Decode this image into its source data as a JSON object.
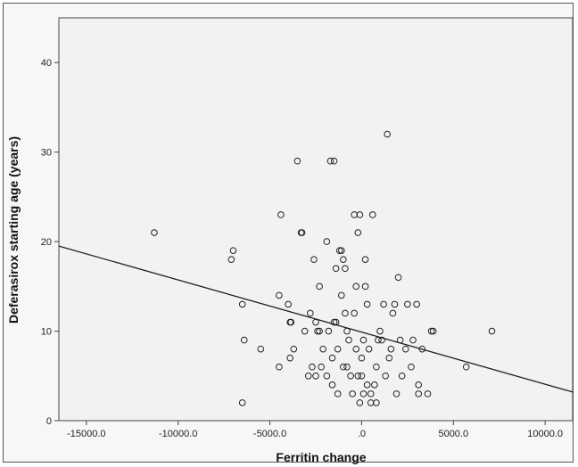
{
  "chart_data": {
    "type": "scatter",
    "title": "",
    "xlabel": "Ferritin change",
    "ylabel": "Deferasirox starting age (years)",
    "xlim": [
      -16500,
      11500
    ],
    "ylim": [
      0,
      45
    ],
    "xticks": [
      -15000,
      -10000,
      -5000,
      0,
      5000,
      10000
    ],
    "xtick_labels": [
      "-15000.0",
      "-10000.0",
      "-5000.0",
      ".0",
      "5000.0",
      "10000.0"
    ],
    "yticks": [
      0,
      10,
      20,
      30,
      40
    ],
    "ytick_labels": [
      "0",
      "10",
      "20",
      "30",
      "40"
    ],
    "grid": false,
    "marker": "open-circle",
    "fit_line": {
      "type": "linear",
      "x": [
        -16500,
        11500
      ],
      "y": [
        19.5,
        3.2
      ]
    },
    "points": [
      [
        -11300,
        21
      ],
      [
        -7000,
        19
      ],
      [
        -7100,
        18
      ],
      [
        -6500,
        13
      ],
      [
        -6400,
        9
      ],
      [
        -6500,
        2
      ],
      [
        -5500,
        8
      ],
      [
        -4400,
        23
      ],
      [
        -4500,
        14
      ],
      [
        -4500,
        6
      ],
      [
        -4000,
        13
      ],
      [
        -3900,
        11
      ],
      [
        -3850,
        11
      ],
      [
        -3900,
        7
      ],
      [
        -3700,
        8
      ],
      [
        -3500,
        29
      ],
      [
        -3300,
        21
      ],
      [
        -3250,
        21
      ],
      [
        -3100,
        10
      ],
      [
        -2900,
        5
      ],
      [
        -2800,
        12
      ],
      [
        -2700,
        6
      ],
      [
        -2600,
        18
      ],
      [
        -2500,
        11
      ],
      [
        -2500,
        5
      ],
      [
        -2400,
        10
      ],
      [
        -2300,
        10
      ],
      [
        -2300,
        15
      ],
      [
        -2200,
        6
      ],
      [
        -2100,
        8
      ],
      [
        -1900,
        20
      ],
      [
        -1900,
        5
      ],
      [
        -1800,
        10
      ],
      [
        -1700,
        29
      ],
      [
        -1600,
        4
      ],
      [
        -1500,
        29
      ],
      [
        -1600,
        7
      ],
      [
        -1500,
        11
      ],
      [
        -1400,
        17
      ],
      [
        -1400,
        11
      ],
      [
        -1300,
        8
      ],
      [
        -1300,
        3
      ],
      [
        -1200,
        19
      ],
      [
        -1100,
        19
      ],
      [
        -1100,
        14
      ],
      [
        -1000,
        18
      ],
      [
        -1000,
        6
      ],
      [
        -900,
        17
      ],
      [
        -900,
        12
      ],
      [
        -800,
        10
      ],
      [
        -800,
        6
      ],
      [
        -700,
        9
      ],
      [
        -600,
        5
      ],
      [
        -500,
        3
      ],
      [
        -400,
        23
      ],
      [
        -400,
        12
      ],
      [
        -300,
        15
      ],
      [
        -300,
        8
      ],
      [
        -200,
        21
      ],
      [
        -200,
        5
      ],
      [
        -100,
        23
      ],
      [
        -100,
        2
      ],
      [
        0,
        7
      ],
      [
        0,
        5
      ],
      [
        100,
        9
      ],
      [
        100,
        3
      ],
      [
        200,
        18
      ],
      [
        200,
        15
      ],
      [
        300,
        4
      ],
      [
        300,
        13
      ],
      [
        400,
        8
      ],
      [
        500,
        3
      ],
      [
        500,
        2
      ],
      [
        600,
        23
      ],
      [
        700,
        4
      ],
      [
        800,
        2
      ],
      [
        800,
        6
      ],
      [
        900,
        9
      ],
      [
        1000,
        10
      ],
      [
        1100,
        9
      ],
      [
        1200,
        13
      ],
      [
        1300,
        5
      ],
      [
        1400,
        32
      ],
      [
        1500,
        7
      ],
      [
        1600,
        8
      ],
      [
        1700,
        12
      ],
      [
        1800,
        13
      ],
      [
        1900,
        3
      ],
      [
        2000,
        16
      ],
      [
        2100,
        9
      ],
      [
        2200,
        5
      ],
      [
        2400,
        8
      ],
      [
        2500,
        13
      ],
      [
        2700,
        6
      ],
      [
        2800,
        9
      ],
      [
        3000,
        13
      ],
      [
        3100,
        4
      ],
      [
        3100,
        3
      ],
      [
        3300,
        8
      ],
      [
        3600,
        3
      ],
      [
        3800,
        10
      ],
      [
        3900,
        10
      ],
      [
        5700,
        6
      ],
      [
        7100,
        10
      ]
    ]
  }
}
